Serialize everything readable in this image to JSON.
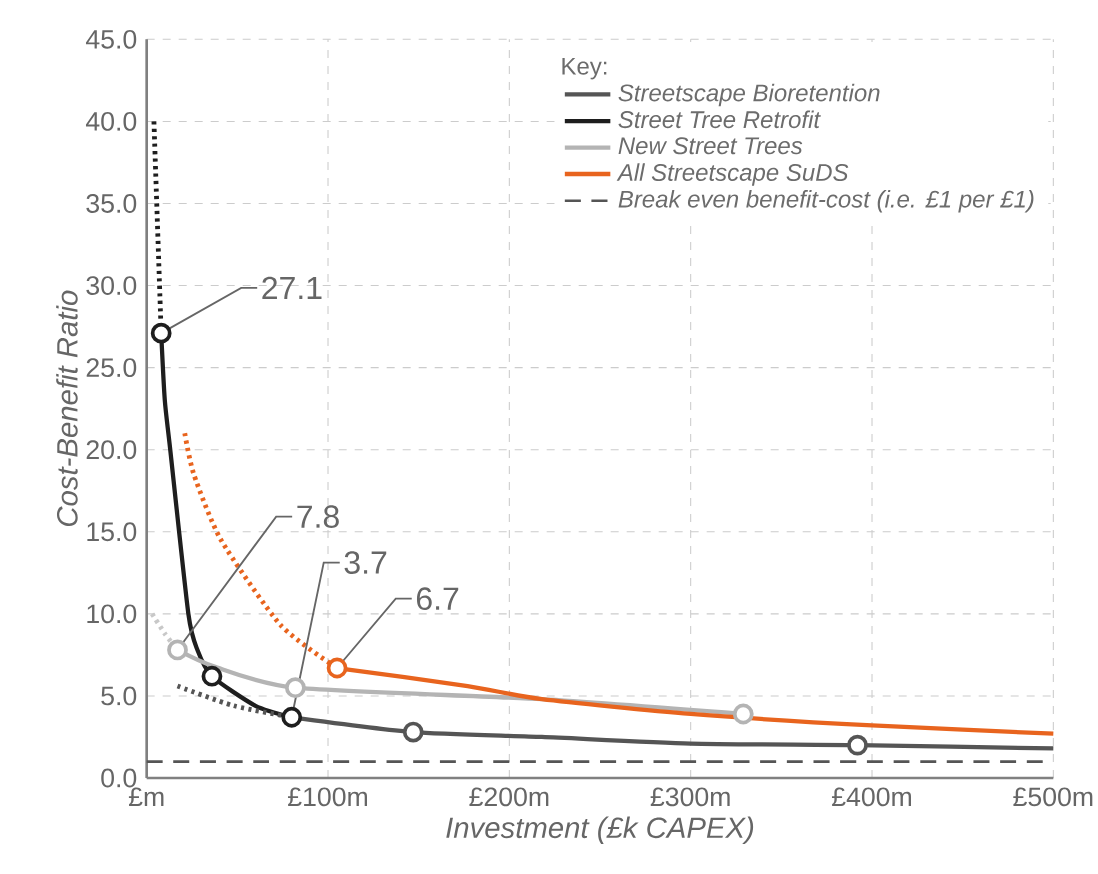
{
  "chart_data": {
    "type": "line",
    "xlabel": "Investment (£k CAPEX)",
    "ylabel": "Cost-Benefit Ratio",
    "legend_title": "Key:",
    "legend": "top right",
    "grid": true,
    "xlim": [
      0,
      500
    ],
    "ylim": [
      0,
      45
    ],
    "xticks": [
      {
        "value": 0,
        "label": "£m"
      },
      {
        "value": 100,
        "label": "£100m"
      },
      {
        "value": 200,
        "label": "£200m"
      },
      {
        "value": 300,
        "label": "£300m"
      },
      {
        "value": 400,
        "label": "£400m"
      },
      {
        "value": 500,
        "label": "£500m"
      }
    ],
    "yticks": [
      {
        "value": 0,
        "label": "0.0"
      },
      {
        "value": 5,
        "label": "5.0"
      },
      {
        "value": 10,
        "label": "10.0"
      },
      {
        "value": 15,
        "label": "15.0"
      },
      {
        "value": 20,
        "label": "20.0"
      },
      {
        "value": 25,
        "label": "25.0"
      },
      {
        "value": 30,
        "label": "30.0"
      },
      {
        "value": 35,
        "label": "35.0"
      },
      {
        "value": 40,
        "label": "40.0"
      },
      {
        "value": 45,
        "label": "45.0"
      }
    ],
    "series": [
      {
        "name": "Streetscape Bioretention",
        "color": "#555555",
        "line_style": "solid",
        "x": [
          80,
          147,
          218,
          300,
          392,
          500
        ],
        "values": [
          3.7,
          2.8,
          2.5,
          2.1,
          2.0,
          1.8
        ]
      },
      {
        "name": "Street Tree Retrofit",
        "color": "#1e1e1e",
        "line_style": "solid",
        "x": [
          8,
          10,
          13,
          23,
          28,
          36,
          60,
          80
        ],
        "values": [
          27.1,
          23,
          20,
          10,
          7.8,
          6.2,
          4.4,
          3.7
        ]
      },
      {
        "name": "New Street Trees",
        "color": "#b4b4b4",
        "line_style": "solid",
        "x": [
          17,
          37,
          82,
          218,
          329
        ],
        "values": [
          7.8,
          6.8,
          5.5,
          4.8,
          3.9
        ]
      },
      {
        "name": "All Streetscape SuDS",
        "color": "#e8641e",
        "line_style": "solid",
        "x": [
          105,
          177,
          218,
          300,
          400,
          500
        ],
        "values": [
          6.7,
          5.6,
          4.8,
          3.9,
          3.2,
          2.7
        ]
      },
      {
        "name": "Break even benefit-cost (i.e. £1 per £1)",
        "color": "#555555",
        "line_style": "dashed",
        "x": [
          0,
          500
        ],
        "values": [
          1,
          1
        ]
      },
      {
        "color": "#1e1e1e",
        "line_style": "dotted",
        "x": [
          4,
          8
        ],
        "values": [
          40,
          27.1
        ]
      },
      {
        "color": "#555555",
        "line_style": "dotted",
        "x": [
          17,
          48,
          80
        ],
        "values": [
          5.6,
          4.4,
          3.7
        ]
      },
      {
        "color": "#c8c8c8",
        "line_style": "dotted",
        "x": [
          3,
          10,
          17
        ],
        "values": [
          10,
          8.8,
          7.8
        ]
      },
      {
        "color": "#e8641e",
        "line_style": "dotted",
        "x": [
          21,
          26,
          41,
          74,
          105
        ],
        "values": [
          21,
          18.5,
          14.5,
          9.3,
          6.7
        ]
      },
      {
        "type": "scatter",
        "color": "#1e1e1e",
        "x": [
          8,
          36,
          80
        ],
        "values": [
          27.1,
          6.2,
          3.7
        ]
      },
      {
        "type": "scatter",
        "color": "#555555",
        "x": [
          147,
          392
        ],
        "values": [
          2.8,
          2.0
        ]
      },
      {
        "type": "scatter",
        "color": "#b4b4b4",
        "x": [
          17,
          82,
          329
        ],
        "values": [
          7.8,
          5.5,
          3.9
        ]
      },
      {
        "type": "scatter",
        "color": "#e8641e",
        "x": [
          105
        ],
        "values": [
          6.7
        ]
      }
    ],
    "annotations": [
      {
        "text": "27.1",
        "x": 8,
        "y": 27.1
      },
      {
        "text": "7.8",
        "x": 17,
        "y": 7.8
      },
      {
        "text": "3.7",
        "x": 80,
        "y": 3.7
      },
      {
        "text": "6.7",
        "x": 105,
        "y": 6.7
      }
    ]
  }
}
